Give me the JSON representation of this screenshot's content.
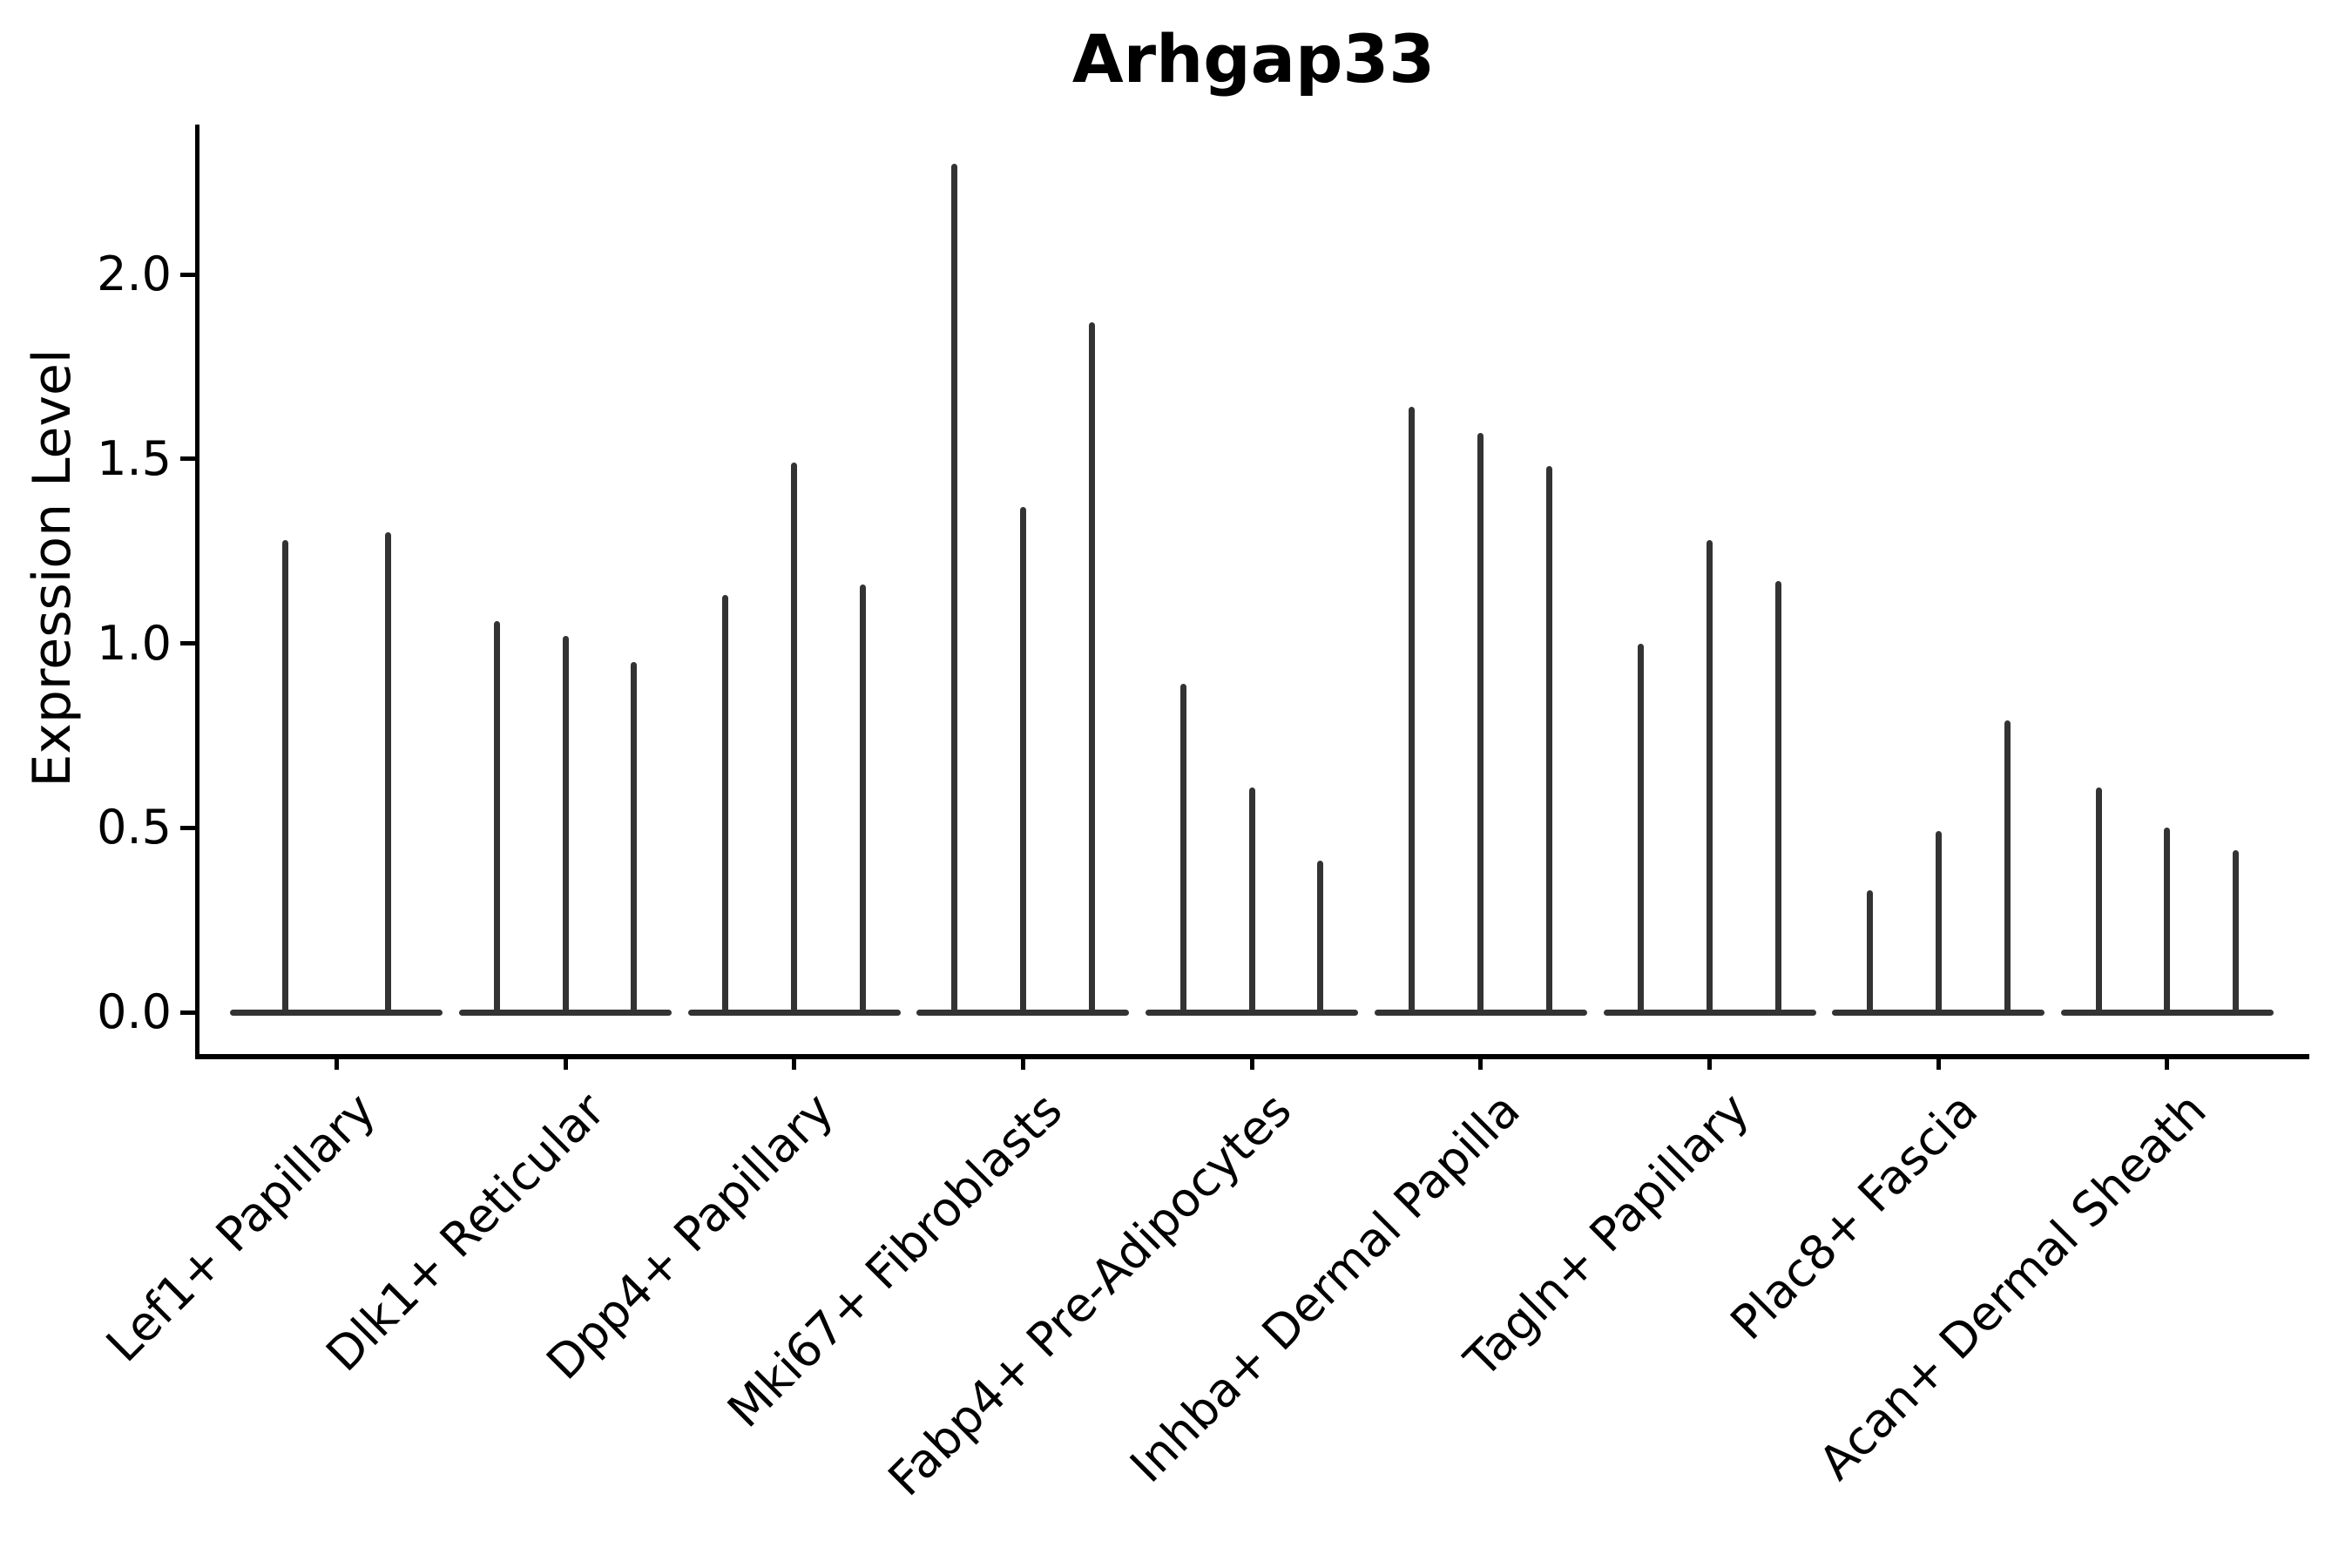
{
  "title": "Arhgap33",
  "chart_data": {
    "type": "violin",
    "title": "Arhgap33",
    "xlabel": "",
    "ylabel": "Expression Level",
    "yticks": [
      0.0,
      0.5,
      1.0,
      1.5,
      2.0
    ],
    "ytick_labels": [
      "0.0",
      "0.5",
      "1.0",
      "1.5",
      "2.0"
    ],
    "ylim": [
      -0.11,
      2.41
    ],
    "grid": false,
    "legend": "none",
    "violin_color": "#333333",
    "axis_color": "#000000",
    "categories": [
      "Lef1+ Papillary",
      "Dlk1+ Reticular",
      "Dpp4+ Papillary",
      "Mki67+ Fibroblasts",
      "Fabp4+ Pre-Adipocytes",
      "Inhba+ Dermal Papilla",
      "Tagln+ Papillary",
      "Plac8+ Fascia",
      "Acan+ Dermal Sheath"
    ],
    "series": [
      {
        "category": "Lef1+ Papillary",
        "violin_max_values": [
          1.28,
          1.3
        ],
        "offsets": [
          -0.225,
          0.225
        ]
      },
      {
        "category": "Dlk1+ Reticular",
        "violin_max_values": [
          1.06,
          1.02,
          0.95
        ],
        "offsets": [
          -0.3,
          0,
          0.3
        ]
      },
      {
        "category": "Dpp4+ Papillary",
        "violin_max_values": [
          1.13,
          1.49,
          1.16
        ],
        "offsets": [
          -0.3,
          0,
          0.3
        ]
      },
      {
        "category": "Mki67+ Fibroblasts",
        "violin_max_values": [
          2.3,
          1.37,
          1.87
        ],
        "offsets": [
          -0.3,
          0,
          0.3
        ]
      },
      {
        "category": "Fabp4+ Pre-Adipocytes",
        "violin_max_values": [
          0.89,
          0.61,
          0.41
        ],
        "offsets": [
          -0.3,
          0,
          0.3
        ]
      },
      {
        "category": "Inhba+ Dermal Papilla",
        "violin_max_values": [
          1.64,
          1.57,
          1.48
        ],
        "offsets": [
          -0.3,
          0,
          0.3
        ]
      },
      {
        "category": "Tagln+ Papillary",
        "violin_max_values": [
          1.0,
          1.28,
          1.17
        ],
        "offsets": [
          -0.3,
          0,
          0.3
        ]
      },
      {
        "category": "Plac8+ Fascia",
        "violin_max_values": [
          0.33,
          0.49,
          0.79
        ],
        "offsets": [
          -0.3,
          0,
          0.3
        ]
      },
      {
        "category": "Acan+ Dermal Sheath",
        "violin_max_values": [
          0.61,
          0.5,
          0.44
        ],
        "offsets": [
          -0.3,
          0,
          0.3
        ]
      }
    ]
  }
}
